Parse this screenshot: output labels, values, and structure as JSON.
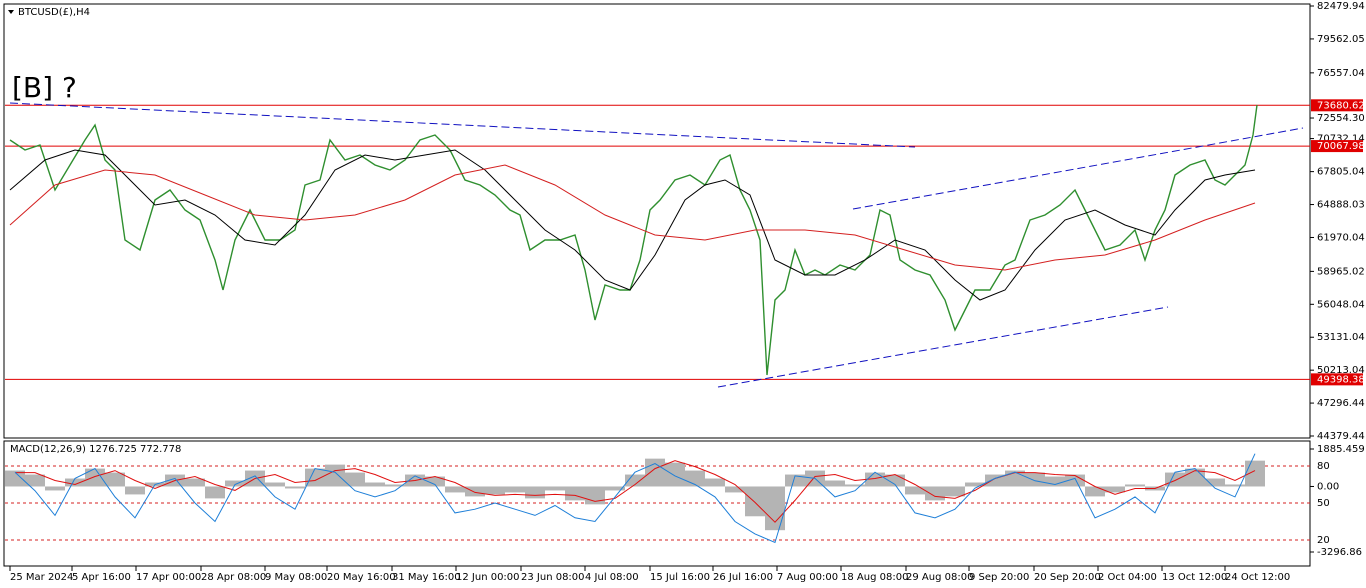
{
  "chart_data": [
    {
      "type": "line",
      "title": "BTCUSD(£),H4",
      "annotation": "[B] ?",
      "xlim": [
        0,
        1305
      ],
      "ylim": [
        44379.44,
        82479.94
      ],
      "yticks": [
        82479.94,
        79562.05,
        76557.04,
        {
          "value": 72554.3,
          "label": "72554.30"
        },
        70732.14,
        67805.04,
        64888.03,
        61970.04,
        58965.02,
        56048.04,
        53131.04,
        50213.04,
        47296.44,
        44379.44
      ],
      "series": [
        {
          "color": "#2f8f2f",
          "x": [
            5,
            20,
            35,
            50,
            65,
            80,
            90,
            100,
            110,
            120,
            135,
            150,
            165,
            180,
            195,
            210,
            218,
            230,
            245,
            260,
            275,
            290,
            300,
            315,
            325,
            340,
            355,
            370,
            385,
            400,
            415,
            430,
            445,
            460,
            475,
            490,
            505,
            515,
            525,
            540,
            555,
            570,
            580,
            590,
            600,
            615,
            625,
            635,
            645,
            655,
            670,
            685,
            700,
            715,
            725,
            735,
            745,
            755,
            762,
            770,
            780,
            790,
            800,
            810,
            820,
            835,
            850,
            865,
            875,
            885,
            895,
            910,
            925,
            940,
            950,
            960,
            970,
            985,
            1000,
            1010,
            1025,
            1040,
            1055,
            1070,
            1080,
            1090,
            1100,
            1115,
            1130,
            1140,
            1150,
            1160,
            1170,
            1185,
            1200,
            1210,
            1220,
            1230,
            1240,
            1248,
            1252
          ],
          "values": [
            70608,
            69722,
            70165,
            66178,
            68393,
            70608,
            71937,
            68836,
            67950,
            61748,
            60862,
            65292,
            66178,
            64406,
            63520,
            59976,
            57318,
            61748,
            64406,
            61748,
            61748,
            62634,
            66621,
            67064,
            70608,
            68836,
            69279,
            68393,
            67950,
            68836,
            70608,
            71051,
            69722,
            67064,
            66621,
            65735,
            64406,
            63963,
            60862,
            61748,
            61748,
            62191,
            59090,
            54660,
            57761,
            57318,
            57318,
            59976,
            64406,
            65292,
            67064,
            67507,
            66621,
            68836,
            69279,
            66178,
            64406,
            61748,
            49787,
            56432,
            57318,
            60862,
            58647,
            59090,
            58647,
            59533,
            59090,
            60419,
            64406,
            63963,
            59976,
            59090,
            58647,
            56432,
            53774,
            55546,
            57318,
            57318,
            59533,
            59976,
            63520,
            63963,
            64849,
            66178,
            64406,
            62634,
            60862,
            61305,
            62634,
            59976,
            62634,
            64406,
            67507,
            68393,
            68836,
            67064,
            66621,
            67507,
            68393,
            71051,
            73709
          ]
        },
        {
          "color": "#000000",
          "x": [
            5,
            40,
            70,
            100,
            120,
            150,
            180,
            210,
            240,
            270,
            300,
            330,
            360,
            390,
            420,
            450,
            480,
            510,
            540,
            570,
            600,
            625,
            650,
            680,
            700,
            720,
            745,
            770,
            800,
            830,
            860,
            890,
            920,
            950,
            975,
            1000,
            1030,
            1060,
            1090,
            1120,
            1150,
            1170,
            1200,
            1220,
            1250
          ],
          "values": [
            66178,
            68836,
            69722,
            69279,
            67507,
            64849,
            65292,
            63963,
            61748,
            61305,
            63963,
            67950,
            69279,
            68836,
            69279,
            69722,
            67950,
            65292,
            62634,
            60862,
            58204,
            57318,
            60419,
            65292,
            66621,
            67064,
            65735,
            59976,
            58647,
            58647,
            59976,
            61748,
            60862,
            58204,
            56432,
            57318,
            60862,
            63520,
            64406,
            63077,
            62191,
            64406,
            67064,
            67507,
            67950
          ]
        },
        {
          "color": "#d42020",
          "x": [
            5,
            50,
            100,
            150,
            200,
            250,
            300,
            350,
            400,
            450,
            500,
            550,
            600,
            650,
            700,
            750,
            800,
            850,
            900,
            950,
            1000,
            1050,
            1100,
            1150,
            1200,
            1250
          ],
          "values": [
            63077,
            66621,
            67950,
            67507,
            65735,
            63963,
            63520,
            63963,
            65292,
            67507,
            68393,
            66621,
            63963,
            62191,
            61748,
            62634,
            62634,
            62191,
            60862,
            59533,
            59090,
            59976,
            60419,
            61748,
            63520,
            65026
          ]
        }
      ],
      "levels": [
        73680.62,
        70067.98,
        49398.38
      ],
      "level_color": "#e00000",
      "trendlines": [
        {
          "x": [
            5,
            910
          ],
          "values": [
            73886,
            69988
          ]
        },
        {
          "x": [
            848,
            1298
          ],
          "values": [
            64495,
            71670
          ]
        },
        {
          "x": [
            713,
            1163
          ],
          "values": [
            48724,
            55812
          ]
        }
      ],
      "trendline_color": "#1010c0"
    },
    {
      "type": "bar",
      "title": "MACD(12,26,9) 1276.725 772.778",
      "xlim": [
        0,
        1305
      ],
      "ylim": [
        -3296.86,
        1885.459
      ],
      "yticks": [
        1885.459,
        {
          "value": 0,
          "label": "0.00"
        },
        -3296.86
      ],
      "y2lim": [
        10.3,
        93.8
      ],
      "y2ticks": [
        80,
        50,
        20
      ],
      "xticks": [
        {
          "value": 5,
          "label": "25 Mar 2024"
        },
        {
          "value": 67,
          "label": "5 Apr 16:00"
        },
        {
          "value": 131,
          "label": "17 Apr 00:00"
        },
        {
          "value": 196,
          "label": "28 Apr 08:00"
        },
        {
          "value": 260,
          "label": "9 May 08:00"
        },
        {
          "value": 322,
          "label": "20 May 16:00"
        },
        {
          "value": 387,
          "label": "31 May 16:00"
        },
        {
          "value": 451,
          "label": "12 Jun 00:00"
        },
        {
          "value": 516,
          "label": "23 Jun 08:00"
        },
        {
          "value": 580,
          "label": "4 Jul 08:00"
        },
        {
          "value": 645,
          "label": "15 Jul 16:00"
        },
        {
          "value": 708,
          "label": "26 Jul 16:00"
        },
        {
          "value": 772,
          "label": "7 Aug 00:00"
        },
        {
          "value": 836,
          "label": "18 Aug 08:00"
        },
        {
          "value": 901,
          "label": "29 Aug 08:00"
        },
        {
          "value": 964,
          "label": "9 Sep 20:00"
        },
        {
          "value": 1029,
          "label": "20 Sep 20:00"
        },
        {
          "value": 1093,
          "label": "2 Oct 04:00"
        },
        {
          "value": 1157,
          "label": "13 Oct 12:00"
        },
        {
          "value": 1220,
          "label": "24 Oct 12:00"
        }
      ],
      "x": [
        10,
        30,
        50,
        70,
        90,
        110,
        130,
        150,
        170,
        190,
        210,
        230,
        250,
        270,
        290,
        310,
        330,
        350,
        370,
        390,
        410,
        430,
        450,
        470,
        490,
        510,
        530,
        550,
        570,
        590,
        610,
        630,
        650,
        670,
        690,
        710,
        730,
        750,
        770,
        790,
        810,
        830,
        850,
        870,
        890,
        910,
        930,
        950,
        970,
        990,
        1010,
        1030,
        1050,
        1070,
        1090,
        1110,
        1130,
        1150,
        1170,
        1190,
        1210,
        1230,
        1250
      ],
      "series": [
        {
          "type": "bar",
          "color": "#b4b4b4",
          "values": [
            800,
            600,
            -200,
            400,
            900,
            700,
            -400,
            200,
            600,
            400,
            -600,
            300,
            800,
            200,
            -100,
            900,
            1100,
            700,
            200,
            100,
            600,
            500,
            -300,
            -500,
            -400,
            -300,
            -600,
            -200,
            -700,
            -900,
            -200,
            600,
            1400,
            1200,
            800,
            400,
            -300,
            -1500,
            -2200,
            600,
            800,
            300,
            100,
            700,
            600,
            -400,
            -700,
            -500,
            200,
            600,
            800,
            700,
            500,
            600,
            -500,
            -300,
            100,
            -200,
            700,
            900,
            400,
            100,
            1300
          ]
        },
        {
          "type": "line",
          "color": "#e01010",
          "values": [
            700,
            700,
            300,
            100,
            500,
            800,
            300,
            -100,
            300,
            500,
            100,
            -200,
            400,
            600,
            200,
            300,
            800,
            900,
            600,
            200,
            300,
            500,
            200,
            -300,
            -450,
            -400,
            -450,
            -400,
            -450,
            -750,
            -600,
            100,
            900,
            1300,
            1000,
            600,
            100,
            -800,
            -1800,
            -700,
            500,
            600,
            300,
            400,
            600,
            100,
            -500,
            -600,
            -200,
            400,
            700,
            700,
            600,
            550,
            0,
            -400,
            -100,
            -100,
            300,
            800,
            700,
            300,
            800
          ]
        },
        {
          "type": "line",
          "color": "#1e7fd8",
          "axis": "y2",
          "values": [
            75,
            60,
            40,
            70,
            78,
            55,
            38,
            65,
            70,
            50,
            35,
            65,
            72,
            55,
            45,
            78,
            75,
            60,
            55,
            60,
            72,
            65,
            42,
            45,
            50,
            45,
            40,
            48,
            38,
            35,
            55,
            75,
            82,
            72,
            65,
            55,
            35,
            25,
            18,
            72,
            70,
            55,
            60,
            75,
            65,
            42,
            38,
            45,
            62,
            70,
            75,
            68,
            65,
            70,
            38,
            45,
            55,
            42,
            75,
            78,
            62,
            55,
            90
          ]
        }
      ]
    }
  ]
}
